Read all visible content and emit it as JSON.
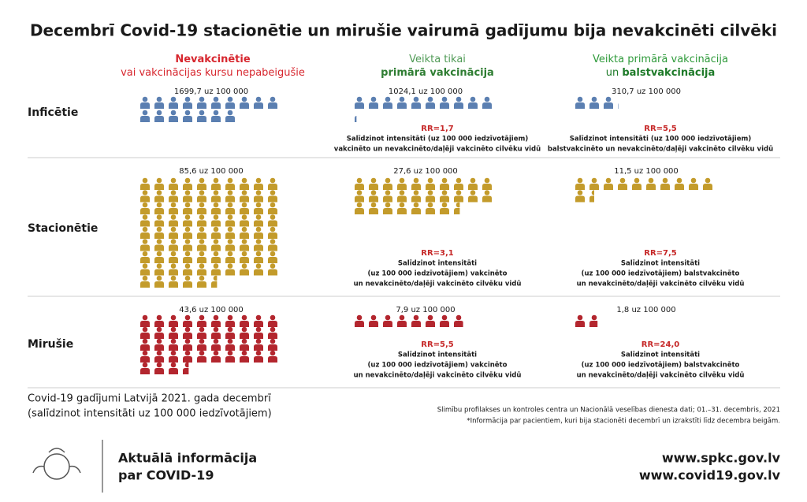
{
  "title": "Decembrī Covid-19 stacionētie un mirušie vairumā gadījumu bija nevakcinēti cilvēki",
  "columns": [
    {
      "lines": [
        [
          "Nevakcinētie"
        ],
        [
          "vai vakcinācijas kursu nepabeigušie"
        ]
      ]
    },
    {
      "lines": [
        [
          "Veikta tikai"
        ],
        [
          "primārā vakcinācija"
        ]
      ]
    },
    {
      "lines": [
        [
          "Veikta primārā vakcinācija"
        ],
        [
          "un ",
          "balstvakcinācija"
        ]
      ]
    }
  ],
  "rows": [
    {
      "label": "Inficētie",
      "cells": [
        {
          "value": 1699.7,
          "label": "1699,7 uz 100 000"
        },
        {
          "value": 1024.1,
          "label": "1024,1 uz 100 000",
          "rr": "RR=1,7",
          "note": [
            "Salīdzinot intensitāti (uz 100 000 iedzīvotājiem)",
            "vakcinēto un nevakcinēto/daļēji vakcinēto cilvēku vidū"
          ]
        },
        {
          "value": 310.7,
          "label": "310,7 uz 100 000",
          "rr": "RR=5,5",
          "note": [
            "Salīdzinot intensitāti (uz 100 000 iedzīvotājiem)",
            "balstvakcinēto un nevakcinēto/daļēji vakcinēto cilvēku vidū"
          ]
        }
      ]
    },
    {
      "label": "Stacionētie",
      "cells": [
        {
          "value": 85.6,
          "label": "85,6 uz 100 000"
        },
        {
          "value": 27.6,
          "label": "27,6 uz 100 000",
          "rr": "RR=3,1",
          "note": [
            "Salīdzinot intensitāti",
            "(uz 100 000 iedzīvotājiem) vakcinēto",
            "un nevakcinēto/daļēji vakcinēto cilvēku vidū"
          ]
        },
        {
          "value": 11.5,
          "label": "11,5 uz 100 000",
          "rr": "RR=7,5",
          "note": [
            "Salīdzinot intensitāti",
            "(uz 100 000 iedzīvotājiem) balstvakcinēto",
            "un nevakcinēto/daļēji vakcinēto cilvēku vidū"
          ]
        }
      ]
    },
    {
      "label": "Mirušie",
      "cells": [
        {
          "value": 43.6,
          "label": "43,6 uz 100 000"
        },
        {
          "value": 7.9,
          "label": "7,9 uz 100 000",
          "rr": "RR=5,5",
          "note": [
            "Salīdzinot intensitāti",
            "(uz 100 000 iedzīvotājiem) vakcinēto",
            "un nevakcinēto/daļēji vakcinēto cilvēku vidū"
          ]
        },
        {
          "value": 1.8,
          "label": "1,8 uz 100 000",
          "rr": "RR=24,0",
          "note": [
            "Salīdzinot intensitāti",
            "(uz 100 000 iedzīvotājiem) balstvakcinēto",
            "un nevakcinēto/daļēji vakcinēto cilvēku vidū"
          ]
        }
      ]
    }
  ],
  "caption": [
    "Covid-19 gadījumi Latvijā 2021. gada decembrī",
    "(salīdzinot intensitāti uz 100 000 iedzīvotājiem)"
  ],
  "source": [
    "Slimību profilakses un kontroles centra un Nacionālā veselības dienesta dati; 01.–31. decembris, 2021",
    "*Informācija par pacientiem, kuri bija stacionēti decembrī un izrakstīti līdz decembra beigām."
  ],
  "footer": {
    "info": [
      "Aktuālā informācija",
      "par COVID-19"
    ],
    "links": [
      "www.spkc.gov.lv",
      "www.covid19.gov.lv"
    ]
  }
}
